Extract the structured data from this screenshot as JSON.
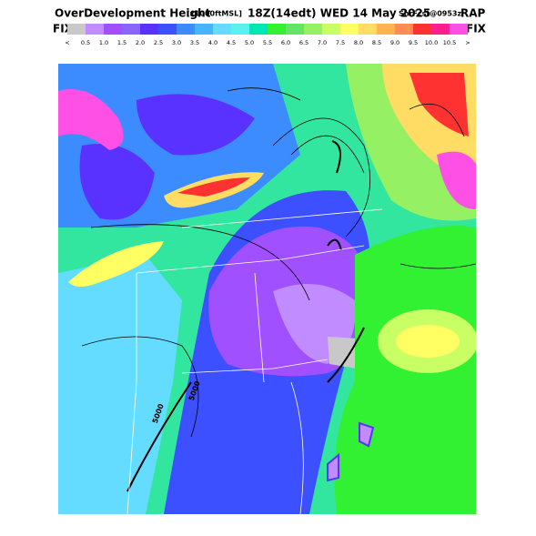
{
  "header": {
    "product": "OverDevelopment Height",
    "units": "[x1000ftMSL]",
    "valid": "18Z(14edt) WED 14 May 2025",
    "forecast": "ShrFcst@0953z",
    "model": "RAP",
    "fix_left": "FIX",
    "fix_right": "FIX"
  },
  "colorbar": {
    "labels": [
      "<",
      "0.5",
      "1.0",
      "1.5",
      "2.0",
      "2.5",
      "3.0",
      "3.5",
      "4.0",
      "4.5",
      "5.0",
      "5.5",
      "6.0",
      "6.5",
      "7.0",
      "7.5",
      "8.0",
      "8.5",
      "9.0",
      "9.5",
      "10.0",
      "10.5",
      ">"
    ],
    "colors": [
      "#c8c8c8",
      "#c08cff",
      "#a050ff",
      "#8c64ff",
      "#5a32ff",
      "#3c50ff",
      "#3c8cff",
      "#46b4ff",
      "#64dcff",
      "#5af0f0",
      "#00e6b4",
      "#32f032",
      "#64e664",
      "#96f064",
      "#c8ff64",
      "#ffff64",
      "#ffdc64",
      "#ffb450",
      "#ff8c50",
      "#ff3232",
      "#ff1e8c",
      "#ff50e6"
    ]
  },
  "map": {
    "contour_labels": [
      "5000",
      "5000"
    ]
  }
}
